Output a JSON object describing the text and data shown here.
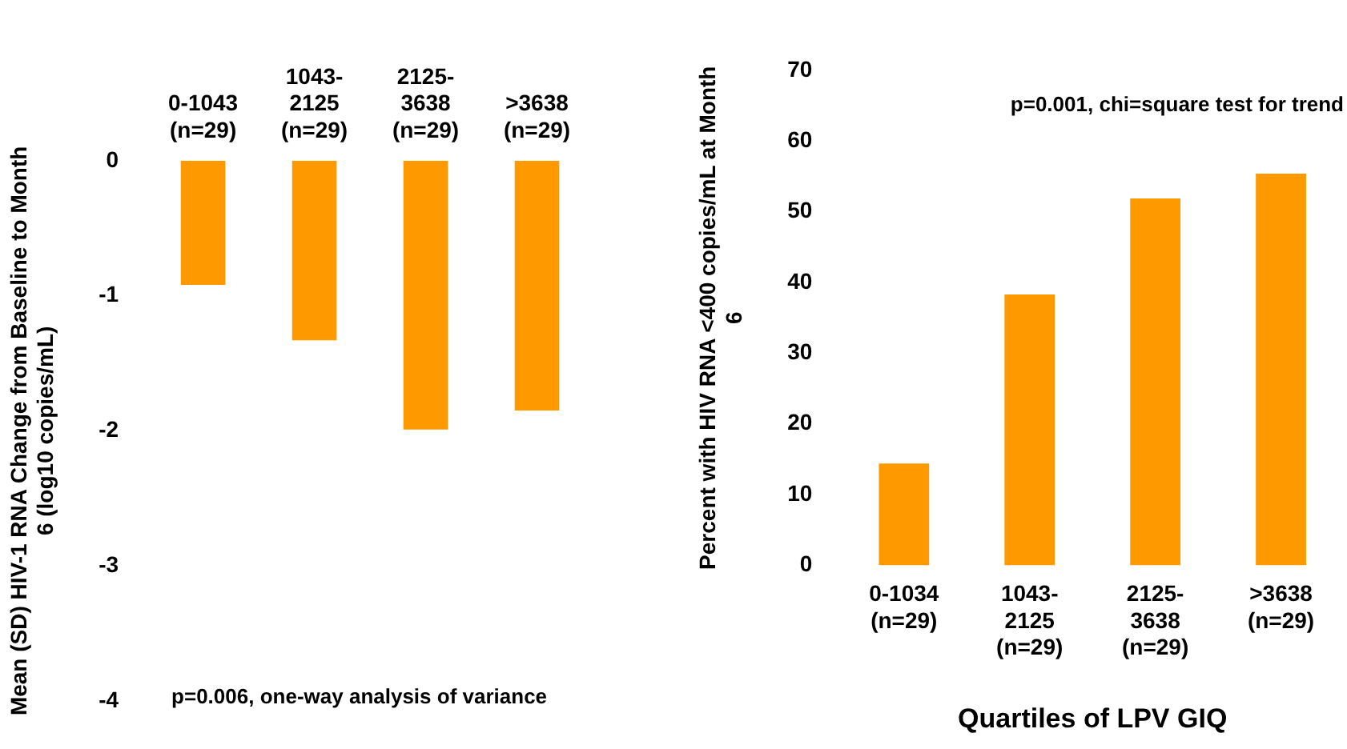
{
  "chart_data": [
    {
      "type": "bar",
      "ylabel": "Mean (SD) HIV-1 RNA Change from Baseline to Month 6 (log10 copies/mL)",
      "categories": [
        "0-1043 (n=29)",
        "1043-2125 (n=29)",
        "2125-3638 (n=29)",
        ">3638 (n=29)"
      ],
      "values": [
        -0.92,
        -1.33,
        -1.99,
        -1.85
      ],
      "color": "#ff9900",
      "ylim": [
        -4,
        0
      ],
      "yticks": [
        -4,
        -3,
        -2,
        -1,
        0
      ],
      "grid": false,
      "legend": false,
      "annotations": [
        "p=0.006, one-way analysis of variance"
      ]
    },
    {
      "type": "bar",
      "xlabel": "Quartiles of LPV GIQ",
      "ylabel": "Percent with HIV RNA <400 copies/mL at Month 6",
      "categories": [
        "0-1034 (n=29)",
        "1043-2125 (n=29)",
        "2125-3638 (n=29)",
        ">3638 (n=29)"
      ],
      "values": [
        14.4,
        38.3,
        51.9,
        55.4
      ],
      "color": "#ff9900",
      "ylim": [
        0,
        70
      ],
      "yticks": [
        0,
        10,
        20,
        30,
        40,
        50,
        60,
        70
      ],
      "grid": false,
      "legend": false,
      "annotations": [
        "p=0.001, chi=square test for trend"
      ]
    }
  ]
}
